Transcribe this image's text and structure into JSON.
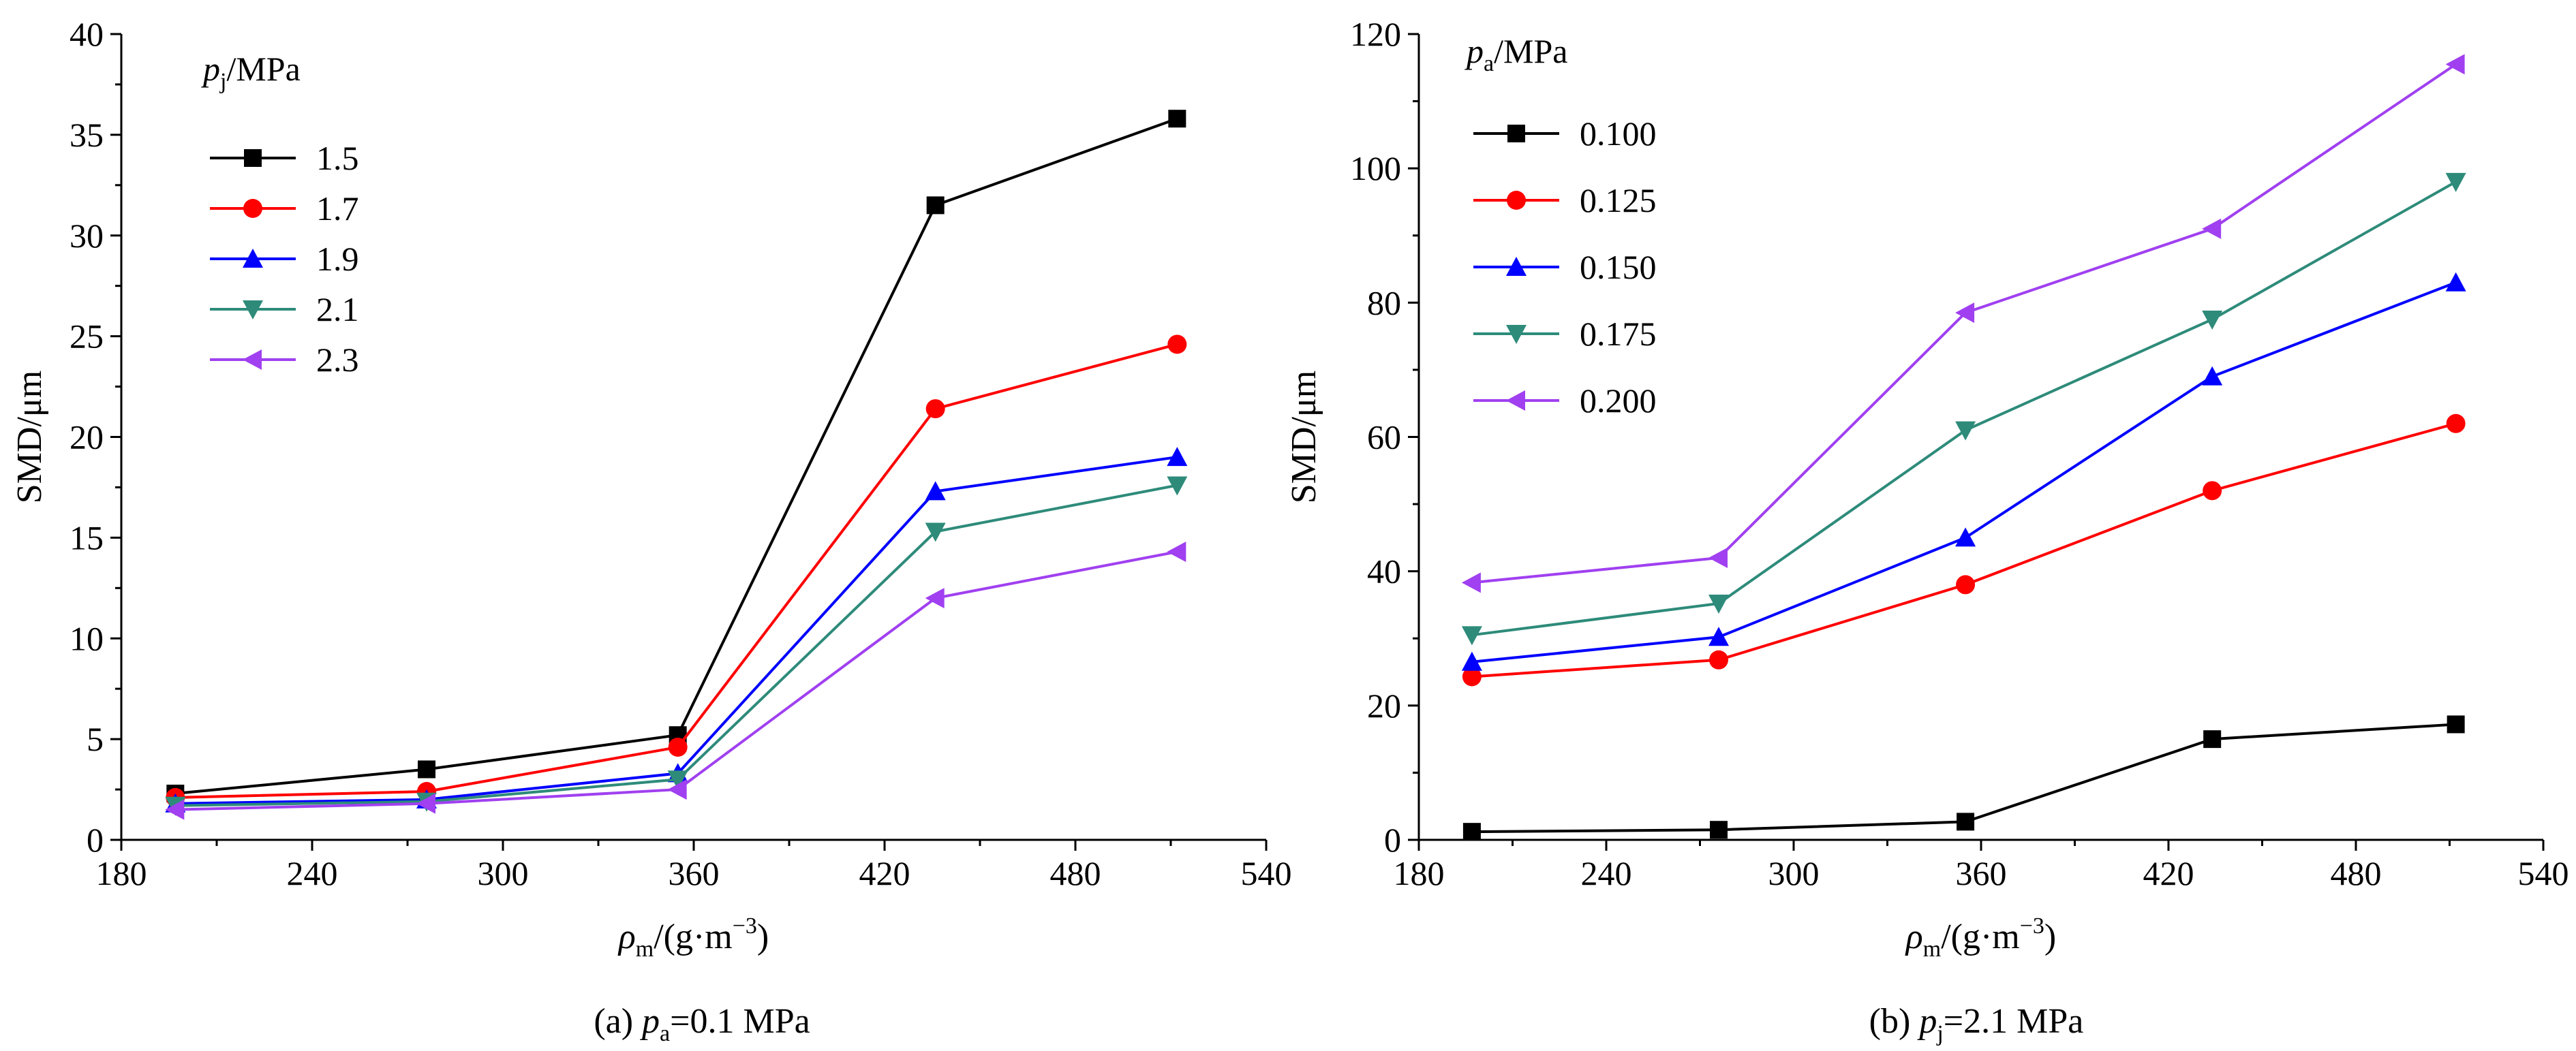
{
  "chart_data": [
    {
      "type": "line",
      "caption": {
        "prefix": "(a) ",
        "var": "p",
        "sub": "a",
        "suffix": "=0.1 MPa"
      },
      "ylabel": "SMD/μm",
      "xlabel": {
        "var": "ρ",
        "sub": "m",
        "suffix": "/(g·m",
        "sup": "−3",
        "close": ")"
      },
      "legend_title": {
        "var": "p",
        "sub": "j",
        "suffix": "/MPa"
      },
      "xlim": [
        180,
        540
      ],
      "ylim": [
        0,
        40
      ],
      "xticks": [
        180,
        240,
        300,
        360,
        420,
        480,
        540
      ],
      "yticks": [
        0,
        5,
        10,
        15,
        20,
        25,
        30,
        35,
        40
      ],
      "x": [
        197,
        276,
        355,
        436,
        512
      ],
      "series": [
        {
          "name": "1.5",
          "color": "#000000",
          "marker": "square",
          "values": [
            2.3,
            3.5,
            5.2,
            31.5,
            35.8
          ]
        },
        {
          "name": "1.7",
          "color": "#ff0000",
          "marker": "circle",
          "values": [
            2.1,
            2.4,
            4.6,
            21.4,
            24.6
          ]
        },
        {
          "name": "1.9",
          "color": "#0000ff",
          "marker": "triangle-up",
          "values": [
            1.8,
            2.0,
            3.3,
            17.3,
            19.0
          ]
        },
        {
          "name": "2.1",
          "color": "#2e8b7a",
          "marker": "triangle-down",
          "values": [
            1.7,
            1.9,
            3.0,
            15.3,
            17.6
          ]
        },
        {
          "name": "2.3",
          "color": "#a040f0",
          "marker": "triangle-left",
          "values": [
            1.5,
            1.8,
            2.5,
            12.0,
            14.3
          ]
        }
      ]
    },
    {
      "type": "line",
      "caption": {
        "prefix": "(b) ",
        "var": "p",
        "sub": "j",
        "suffix": "=2.1 MPa"
      },
      "ylabel": "SMD/μm",
      "xlabel": {
        "var": "ρ",
        "sub": "m",
        "suffix": "/(g·m",
        "sup": "−3",
        "close": ")"
      },
      "legend_title": {
        "var": "p",
        "sub": "a",
        "suffix": "/MPa"
      },
      "xlim": [
        180,
        540
      ],
      "ylim": [
        0,
        120
      ],
      "xticks": [
        180,
        240,
        300,
        360,
        420,
        480,
        540
      ],
      "yticks": [
        0,
        20,
        40,
        60,
        80,
        100,
        120
      ],
      "x": [
        197,
        276,
        355,
        434,
        512
      ],
      "series": [
        {
          "name": "0.100",
          "color": "#000000",
          "marker": "square",
          "values": [
            1.2,
            1.5,
            2.7,
            15.0,
            17.2
          ]
        },
        {
          "name": "0.125",
          "color": "#ff0000",
          "marker": "circle",
          "values": [
            24.3,
            26.8,
            38.0,
            52.0,
            62.0
          ]
        },
        {
          "name": "0.150",
          "color": "#0000ff",
          "marker": "triangle-up",
          "values": [
            26.5,
            30.2,
            45.0,
            69.0,
            83.0
          ]
        },
        {
          "name": "0.175",
          "color": "#2e8b7a",
          "marker": "triangle-down",
          "values": [
            30.5,
            35.2,
            61.0,
            77.5,
            98.0
          ]
        },
        {
          "name": "0.200",
          "color": "#a040f0",
          "marker": "triangle-left",
          "values": [
            38.3,
            42.0,
            78.5,
            91.0,
            115.5
          ]
        }
      ]
    }
  ]
}
